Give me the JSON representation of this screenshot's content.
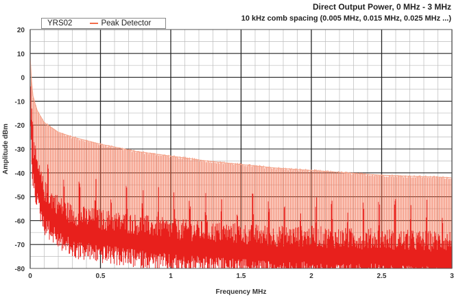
{
  "chart_data": {
    "type": "line",
    "title": "Direct Output Power, 0 MHz - 3 MHz",
    "subtitle": "10 kHz comb spacing (0.005 MHz, 0.015 MHz, 0.025 MHz ...)",
    "xlabel": "Frequency MHz",
    "ylabel": "Amplitude dBm",
    "xlim": [
      0,
      3
    ],
    "ylim": [
      -80,
      20
    ],
    "x_ticks": [
      "0",
      "0.5",
      "1",
      "1.5",
      "2",
      "2.5",
      "3"
    ],
    "y_ticks": [
      "20",
      "10",
      "0",
      "-10",
      "-20",
      "-30",
      "-40",
      "-50",
      "-60",
      "-70",
      "-80"
    ],
    "grid": true,
    "legend_position": "top-left",
    "series": [
      {
        "name": "YRS02",
        "color": "#e8201c",
        "x": [
          0.0,
          0.01,
          0.02,
          0.05,
          0.1,
          0.2,
          0.3,
          0.5,
          0.75,
          1.0,
          1.25,
          1.5,
          1.75,
          2.0,
          2.25,
          2.5,
          2.75,
          3.0
        ],
        "y": [
          0,
          -25,
          -33,
          -42,
          -52,
          -58,
          -62,
          -64,
          -66,
          -68,
          -69,
          -70,
          -71,
          -71,
          -72,
          -72,
          -73,
          -73
        ]
      },
      {
        "name": "Peak Detector",
        "color": "#f26b4a",
        "x": [
          0.0,
          0.01,
          0.02,
          0.05,
          0.1,
          0.2,
          0.3,
          0.5,
          0.75,
          1.0,
          1.25,
          1.5,
          1.75,
          2.0,
          2.25,
          2.5,
          2.75,
          3.0
        ],
        "y": [
          8,
          -2,
          -8,
          -14,
          -19,
          -23,
          -25,
          -28,
          -31,
          -33,
          -35,
          -36.5,
          -38,
          -39,
          -40,
          -41,
          -41.5,
          -42
        ]
      }
    ]
  }
}
